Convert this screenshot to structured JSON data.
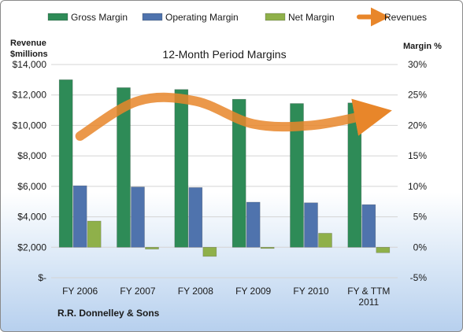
{
  "chart_data": {
    "type": "bar",
    "title": "12-Month Period Margins",
    "company": "R.R. Donnelley & Sons",
    "left_axis_title": [
      "Revenue",
      "$millions"
    ],
    "right_axis_title": "Margin %",
    "left_axis": {
      "min": 0,
      "max": 14000,
      "step": 2000,
      "tick_labels": [
        "$-",
        "$2,000",
        "$4,000",
        "$6,000",
        "$8,000",
        "$10,000",
        "$12,000",
        "$14,000"
      ]
    },
    "right_axis": {
      "min": -5,
      "max": 30,
      "step": 5,
      "tick_labels": [
        "-5%",
        "0%",
        "5%",
        "10%",
        "15%",
        "20%",
        "25%",
        "30%"
      ]
    },
    "categories": [
      [
        "FY 2006"
      ],
      [
        "FY 2007"
      ],
      [
        "FY 2008"
      ],
      [
        "FY 2009"
      ],
      [
        "FY 2010"
      ],
      [
        "FY & TTM",
        "2011"
      ]
    ],
    "series": [
      {
        "name": "Gross Margin",
        "axis": "right",
        "kind": "bar",
        "color": "#2e8b57",
        "values": [
          27.5,
          26.2,
          25.9,
          24.3,
          23.6,
          23.7
        ]
      },
      {
        "name": "Operating Margin",
        "axis": "right",
        "kind": "bar",
        "color": "#4f73ad",
        "values": [
          10.1,
          9.9,
          9.8,
          7.4,
          7.3,
          7.0
        ]
      },
      {
        "name": "Net Margin",
        "axis": "right",
        "kind": "bar",
        "color": "#8fb04a",
        "values": [
          4.3,
          -0.3,
          -1.5,
          -0.2,
          2.3,
          -0.9
        ]
      },
      {
        "name": "Revenues",
        "axis": "left",
        "kind": "line",
        "color": "#e8862a",
        "values": [
          9300,
          11600,
          11600,
          10100,
          10000,
          10700
        ]
      }
    ],
    "grid": true,
    "legend": "top"
  }
}
